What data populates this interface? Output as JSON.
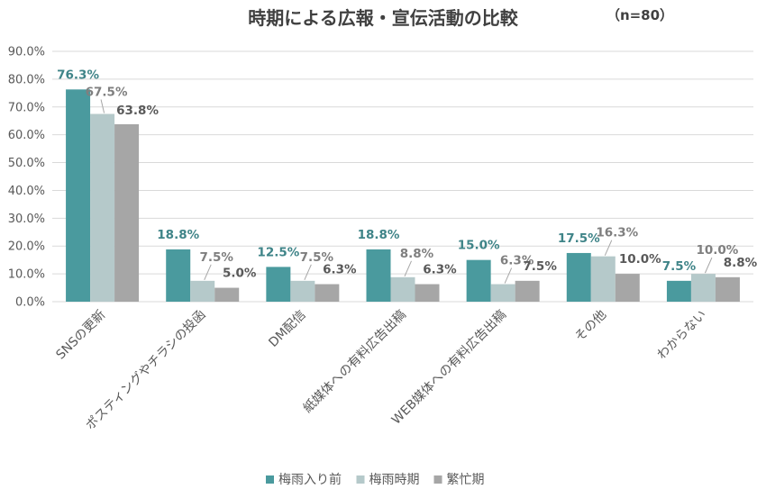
{
  "chart_data": {
    "type": "bar",
    "title": "時期による広報・宣伝活動の比較",
    "note": "（n=80）",
    "xlabel": "",
    "ylabel": "",
    "ylim": [
      0,
      90
    ],
    "y_ticks": [
      "0.0%",
      "10.0%",
      "20.0%",
      "30.0%",
      "40.0%",
      "50.0%",
      "60.0%",
      "70.0%",
      "80.0%",
      "90.0%"
    ],
    "grid": true,
    "legend_position": "bottom",
    "categories": [
      "SNSの更新",
      "ポスティングやチラシの投函",
      "DM配信",
      "紙媒体への有料広告出稿",
      "WEB媒体への有料広告出稿",
      "その他",
      "わからない"
    ],
    "series": [
      {
        "name": "梅雨入り前",
        "color": "#4a9a9e",
        "label_color": "#3f8488",
        "values": [
          76.3,
          18.8,
          12.5,
          18.8,
          15.0,
          17.5,
          7.5
        ],
        "labels": [
          "76.3%",
          "18.8%",
          "12.5%",
          "18.8%",
          "15.0%",
          "17.5%",
          "7.5%"
        ]
      },
      {
        "name": "梅雨時期",
        "color": "#b5c9ca",
        "label_color": "#7f7f7f",
        "values": [
          67.5,
          7.5,
          7.5,
          8.8,
          6.3,
          16.3,
          10.0
        ],
        "labels": [
          "67.5%",
          "7.5%",
          "7.5%",
          "8.8%",
          "6.3%",
          "16.3%",
          "10.0%"
        ]
      },
      {
        "name": "繁忙期",
        "color": "#a6a6a6",
        "label_color": "#595959",
        "values": [
          63.8,
          5.0,
          6.3,
          6.3,
          7.5,
          10.0,
          8.8
        ],
        "labels": [
          "63.8%",
          "5.0%",
          "6.3%",
          "6.3%",
          "7.5%",
          "10.0%",
          "8.8%"
        ]
      }
    ]
  }
}
